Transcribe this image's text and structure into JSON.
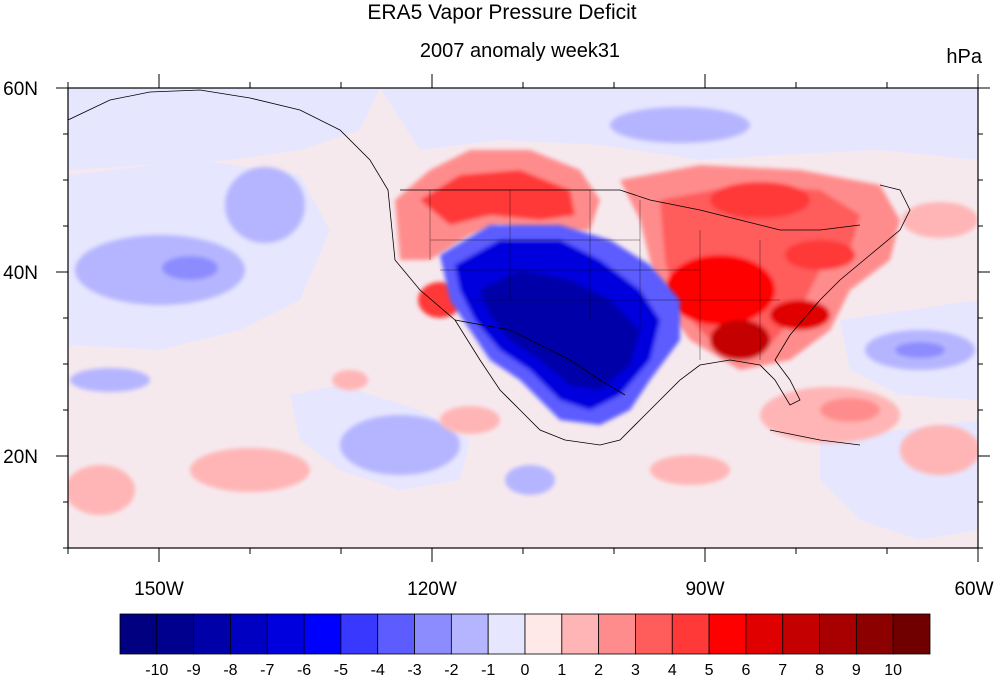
{
  "title": "ERA5 Vapor Pressure Deficit",
  "subtitle": "2007 anomaly week31",
  "units": "hPa",
  "map": {
    "lon_range": [
      -160,
      -60
    ],
    "lat_range": [
      10,
      60
    ],
    "lon_ticks": [
      {
        "value": -150,
        "label": "150W"
      },
      {
        "value": -120,
        "label": "120W"
      },
      {
        "value": -90,
        "label": "90W"
      },
      {
        "value": -60,
        "label": "60W"
      }
    ],
    "lat_ticks": [
      {
        "value": 60,
        "label": "60N"
      },
      {
        "value": 40,
        "label": "40N"
      },
      {
        "value": 20,
        "label": "20N"
      }
    ]
  },
  "colorbar": {
    "labels": [
      "-10",
      "-9",
      "-8",
      "-7",
      "-6",
      "-5",
      "-4",
      "-3",
      "-2",
      "-1",
      "0",
      "1",
      "2",
      "3",
      "4",
      "5",
      "6",
      "7",
      "8",
      "9",
      "10"
    ],
    "colors": [
      "#000080",
      "#00008f",
      "#0000a8",
      "#0000c2",
      "#0000de",
      "#0000ff",
      "#3838ff",
      "#5c5cff",
      "#8c8cff",
      "#b5b5ff",
      "#e6e6ff",
      "#ffe8e8",
      "#ffb5b5",
      "#ff8c8c",
      "#ff5c5c",
      "#ff3838",
      "#ff0000",
      "#e00000",
      "#c40000",
      "#a80000",
      "#8c0000",
      "#700000"
    ]
  },
  "colors": {
    "background_neg": "#e6e6ff",
    "background_pos": "#ffe8e8",
    "coast": "#000000"
  }
}
